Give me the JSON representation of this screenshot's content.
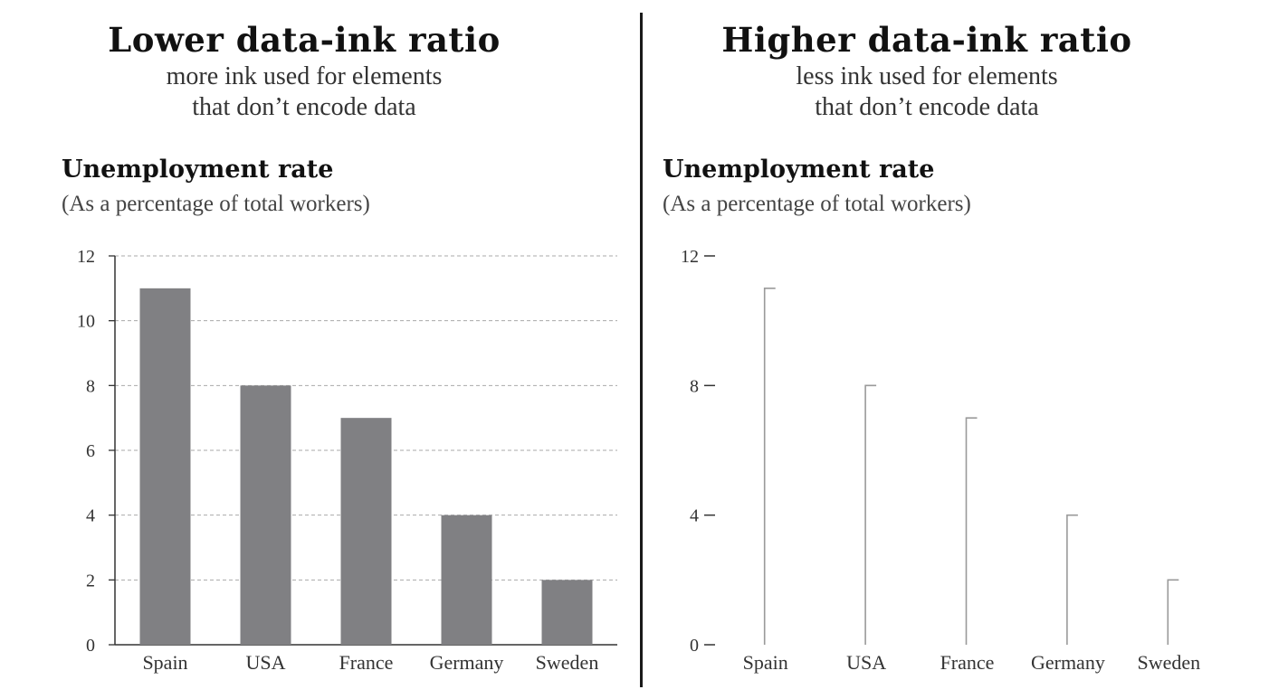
{
  "left": {
    "heading": "Lower data-ink ratio",
    "subheading_lines": [
      "more ink used for elements",
      "that don’t encode data"
    ]
  },
  "right": {
    "heading": "Higher data-ink ratio",
    "subheading_lines": [
      "less ink used for elements",
      "that don’t encode data"
    ]
  },
  "colors": {
    "bar": "#808083",
    "lollipop": "#9a9a9a",
    "grid": "#aaaaaa",
    "axis": "#333333"
  },
  "chart_data": [
    {
      "type": "bar",
      "title": "Unemployment rate",
      "subtitle": "(As a percentage of total workers)",
      "categories": [
        "Spain",
        "USA",
        "France",
        "Germany",
        "Sweden"
      ],
      "values": [
        11,
        8,
        7,
        4,
        2
      ],
      "ylim": [
        0,
        12
      ],
      "yticks": [
        "0",
        "2",
        "4",
        "6",
        "8",
        "10",
        "12"
      ],
      "grid": true
    },
    {
      "type": "bar",
      "title": "Unemployment rate",
      "subtitle": "(As a percentage of total workers)",
      "categories": [
        "Spain",
        "USA",
        "France",
        "Germany",
        "Sweden"
      ],
      "values": [
        11,
        8,
        7,
        4,
        2
      ],
      "ylim": [
        0,
        12
      ],
      "yticks": [
        "0",
        "4",
        "8",
        "12"
      ],
      "grid": false
    }
  ]
}
